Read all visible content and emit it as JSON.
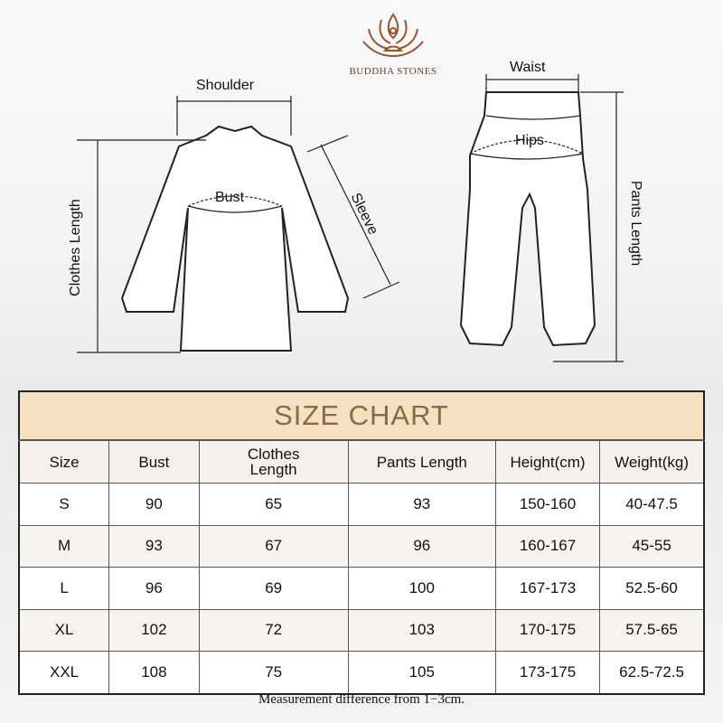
{
  "brand": {
    "name": "BUDDHA STONES",
    "logo_color": "#a0522d"
  },
  "diagram": {
    "top_labels": {
      "shoulder": "Shoulder",
      "bust": "Bust",
      "sleeve": "Sleeve",
      "clothes_length": "Clothes Length"
    },
    "pants_labels": {
      "waist": "Waist",
      "hips": "Hips",
      "pants_length": "Pants Length"
    }
  },
  "table": {
    "title": "SIZE CHART",
    "title_bg": "#f5e1c2",
    "title_color": "#8a6a40",
    "headers": [
      "Size",
      "Bust",
      "Clothes Length",
      "Pants Length",
      "Height(cm)",
      "Weight(kg)"
    ],
    "rows": [
      [
        "S",
        "90",
        "65",
        "93",
        "150-160",
        "40-47.5"
      ],
      [
        "M",
        "93",
        "67",
        "96",
        "160-167",
        "45-55"
      ],
      [
        "L",
        "96",
        "69",
        "100",
        "167-173",
        "52.5-60"
      ],
      [
        "XL",
        "102",
        "72",
        "103",
        "170-175",
        "57.5-65"
      ],
      [
        "XXL",
        "108",
        "75",
        "105",
        "173-175",
        "62.5-72.5"
      ]
    ]
  },
  "note": "Measurement difference from 1−3cm."
}
